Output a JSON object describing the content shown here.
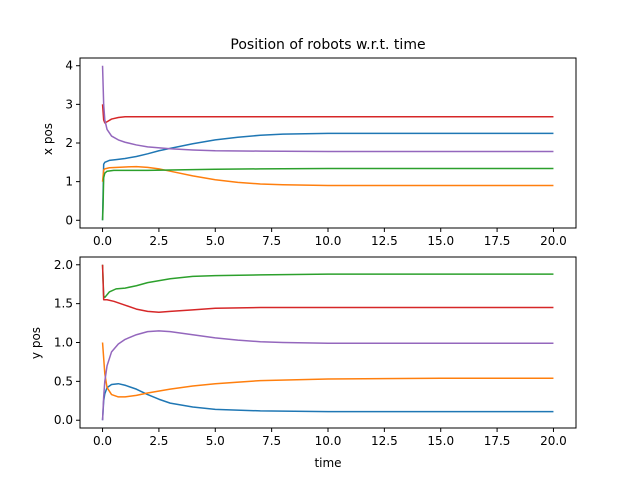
{
  "chart_data": [
    {
      "type": "line",
      "title": "Position of robots w.r.t. time",
      "xlabel": "",
      "ylabel": "x pos",
      "xlim": [
        -1.0,
        21.0
      ],
      "ylim": [
        -0.2,
        4.2
      ],
      "xticks": [
        "0.0",
        "2.5",
        "5.0",
        "7.5",
        "10.0",
        "12.5",
        "15.0",
        "17.5",
        "20.0"
      ],
      "yticks": [
        "0",
        "1",
        "2",
        "3",
        "4"
      ],
      "grid": false,
      "series": [
        {
          "color": "#1f77b4",
          "points": [
            [
              0,
              0.0
            ],
            [
              0.05,
              1.45
            ],
            [
              0.1,
              1.5
            ],
            [
              0.3,
              1.55
            ],
            [
              0.6,
              1.57
            ],
            [
              1,
              1.6
            ],
            [
              1.5,
              1.65
            ],
            [
              2,
              1.72
            ],
            [
              2.5,
              1.8
            ],
            [
              3,
              1.86
            ],
            [
              4,
              1.98
            ],
            [
              5,
              2.08
            ],
            [
              6,
              2.15
            ],
            [
              7,
              2.2
            ],
            [
              8,
              2.23
            ],
            [
              9,
              2.24
            ],
            [
              10,
              2.25
            ],
            [
              12,
              2.25
            ],
            [
              15,
              2.25
            ],
            [
              20,
              2.25
            ]
          ]
        },
        {
          "color": "#ff7f0e",
          "points": [
            [
              0,
              1.0
            ],
            [
              0.05,
              1.3
            ],
            [
              0.1,
              1.33
            ],
            [
              0.3,
              1.36
            ],
            [
              1,
              1.38
            ],
            [
              1.5,
              1.39
            ],
            [
              2,
              1.37
            ],
            [
              2.5,
              1.33
            ],
            [
              3,
              1.27
            ],
            [
              4,
              1.15
            ],
            [
              5,
              1.05
            ],
            [
              6,
              0.98
            ],
            [
              7,
              0.94
            ],
            [
              8,
              0.92
            ],
            [
              9,
              0.91
            ],
            [
              10,
              0.9
            ],
            [
              15,
              0.9
            ],
            [
              20,
              0.9
            ]
          ]
        },
        {
          "color": "#2ca02c",
          "points": [
            [
              0,
              0.0
            ],
            [
              0.02,
              0.3
            ],
            [
              0.05,
              1.1
            ],
            [
              0.1,
              1.22
            ],
            [
              0.2,
              1.27
            ],
            [
              0.5,
              1.29
            ],
            [
              1,
              1.29
            ],
            [
              2,
              1.29
            ],
            [
              3,
              1.3
            ],
            [
              5,
              1.32
            ],
            [
              7,
              1.33
            ],
            [
              10,
              1.34
            ],
            [
              15,
              1.34
            ],
            [
              20,
              1.34
            ]
          ]
        },
        {
          "color": "#d62728",
          "points": [
            [
              0,
              3.0
            ],
            [
              0.05,
              2.6
            ],
            [
              0.1,
              2.52
            ],
            [
              0.2,
              2.55
            ],
            [
              0.4,
              2.62
            ],
            [
              0.7,
              2.66
            ],
            [
              1,
              2.68
            ],
            [
              2,
              2.68
            ],
            [
              5,
              2.68
            ],
            [
              10,
              2.68
            ],
            [
              15,
              2.68
            ],
            [
              20,
              2.68
            ]
          ]
        },
        {
          "color": "#9467bd",
          "points": [
            [
              0,
              4.0
            ],
            [
              0.05,
              3.0
            ],
            [
              0.1,
              2.6
            ],
            [
              0.2,
              2.35
            ],
            [
              0.4,
              2.18
            ],
            [
              0.7,
              2.08
            ],
            [
              1,
              2.02
            ],
            [
              1.5,
              1.95
            ],
            [
              2,
              1.9
            ],
            [
              3,
              1.85
            ],
            [
              4,
              1.82
            ],
            [
              5,
              1.8
            ],
            [
              7,
              1.79
            ],
            [
              10,
              1.78
            ],
            [
              15,
              1.78
            ],
            [
              20,
              1.78
            ]
          ]
        }
      ]
    },
    {
      "type": "line",
      "title": "",
      "xlabel": "time",
      "ylabel": "y pos",
      "xlim": [
        -1.0,
        21.0
      ],
      "ylim": [
        -0.1,
        2.1
      ],
      "xticks": [
        "0.0",
        "2.5",
        "5.0",
        "7.5",
        "10.0",
        "12.5",
        "15.0",
        "17.5",
        "20.0"
      ],
      "yticks": [
        "0.0",
        "0.5",
        "1.0",
        "1.5",
        "2.0"
      ],
      "grid": false,
      "series": [
        {
          "color": "#1f77b4",
          "points": [
            [
              0,
              0.0
            ],
            [
              0.05,
              0.25
            ],
            [
              0.1,
              0.34
            ],
            [
              0.2,
              0.42
            ],
            [
              0.4,
              0.46
            ],
            [
              0.7,
              0.47
            ],
            [
              1,
              0.45
            ],
            [
              1.5,
              0.4
            ],
            [
              2,
              0.33
            ],
            [
              2.5,
              0.27
            ],
            [
              3,
              0.22
            ],
            [
              4,
              0.17
            ],
            [
              5,
              0.14
            ],
            [
              7,
              0.12
            ],
            [
              10,
              0.11
            ],
            [
              15,
              0.11
            ],
            [
              20,
              0.11
            ]
          ]
        },
        {
          "color": "#ff7f0e",
          "points": [
            [
              0,
              1.0
            ],
            [
              0.05,
              0.8
            ],
            [
              0.1,
              0.6
            ],
            [
              0.2,
              0.42
            ],
            [
              0.4,
              0.33
            ],
            [
              0.7,
              0.3
            ],
            [
              1,
              0.3
            ],
            [
              1.5,
              0.32
            ],
            [
              2,
              0.35
            ],
            [
              3,
              0.4
            ],
            [
              4,
              0.44
            ],
            [
              5,
              0.47
            ],
            [
              7,
              0.51
            ],
            [
              10,
              0.53
            ],
            [
              15,
              0.54
            ],
            [
              20,
              0.54
            ]
          ]
        },
        {
          "color": "#2ca02c",
          "points": [
            [
              0,
              2.0
            ],
            [
              0.05,
              1.6
            ],
            [
              0.1,
              1.58
            ],
            [
              0.3,
              1.65
            ],
            [
              0.6,
              1.69
            ],
            [
              1,
              1.7
            ],
            [
              1.5,
              1.73
            ],
            [
              2,
              1.77
            ],
            [
              3,
              1.82
            ],
            [
              4,
              1.85
            ],
            [
              5,
              1.86
            ],
            [
              7,
              1.87
            ],
            [
              10,
              1.88
            ],
            [
              15,
              1.88
            ],
            [
              20,
              1.88
            ]
          ]
        },
        {
          "color": "#d62728",
          "points": [
            [
              0,
              2.0
            ],
            [
              0.05,
              1.55
            ],
            [
              0.2,
              1.55
            ],
            [
              0.5,
              1.53
            ],
            [
              1,
              1.48
            ],
            [
              1.5,
              1.43
            ],
            [
              2,
              1.4
            ],
            [
              2.5,
              1.39
            ],
            [
              3,
              1.4
            ],
            [
              4,
              1.42
            ],
            [
              5,
              1.44
            ],
            [
              7,
              1.45
            ],
            [
              10,
              1.45
            ],
            [
              15,
              1.45
            ],
            [
              20,
              1.45
            ]
          ]
        },
        {
          "color": "#9467bd",
          "points": [
            [
              0,
              0.0
            ],
            [
              0.05,
              0.3
            ],
            [
              0.1,
              0.5
            ],
            [
              0.2,
              0.7
            ],
            [
              0.4,
              0.88
            ],
            [
              0.7,
              0.98
            ],
            [
              1,
              1.04
            ],
            [
              1.5,
              1.1
            ],
            [
              2,
              1.14
            ],
            [
              2.5,
              1.15
            ],
            [
              3,
              1.14
            ],
            [
              4,
              1.1
            ],
            [
              5,
              1.06
            ],
            [
              6,
              1.03
            ],
            [
              7,
              1.01
            ],
            [
              8,
              1.0
            ],
            [
              10,
              0.99
            ],
            [
              15,
              0.99
            ],
            [
              20,
              0.99
            ]
          ]
        }
      ]
    }
  ]
}
